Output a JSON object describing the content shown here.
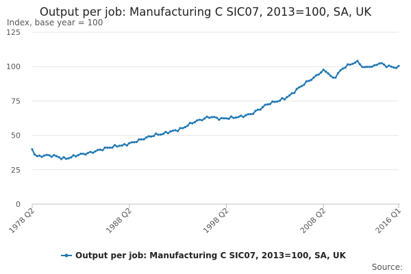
{
  "chart_data": {
    "type": "line",
    "title": "Output per job: Manufacturing C SIC07, 2013=100, SA, UK",
    "subtitle": "Index, base year = 100",
    "ylim": [
      0,
      125
    ],
    "yticks": [
      "0",
      "25",
      "50",
      "75",
      "100",
      "125"
    ],
    "xticks": [
      {
        "label": "1978 Q2",
        "t": 1978.25
      },
      {
        "label": "1988 Q2",
        "t": 1988.25
      },
      {
        "label": "1998 Q2",
        "t": 1998.25
      },
      {
        "label": "2008 Q2",
        "t": 2008.25
      },
      {
        "label": "2016 Q1",
        "t": 2016.0
      }
    ],
    "xrange": [
      1978.25,
      2016.0
    ],
    "series": [
      {
        "name": "Output per job: Manufacturing C SIC07, 2013=100, SA, UK",
        "color": "#1f77b4",
        "anchors": [
          [
            1978.25,
            39.5
          ],
          [
            1978.6,
            35.5
          ],
          [
            1979.0,
            34.5
          ],
          [
            1979.3,
            34.8
          ],
          [
            1979.6,
            36.0
          ],
          [
            1980.0,
            35.0
          ],
          [
            1980.4,
            35.5
          ],
          [
            1980.8,
            34.5
          ],
          [
            1981.3,
            33.5
          ],
          [
            1981.7,
            33.0
          ],
          [
            1982.2,
            34.0
          ],
          [
            1982.8,
            35.5
          ],
          [
            1983.5,
            36.5
          ],
          [
            1984.0,
            37.0
          ],
          [
            1984.8,
            38.5
          ],
          [
            1985.5,
            40.0
          ],
          [
            1986.0,
            41.0
          ],
          [
            1986.5,
            41.5
          ],
          [
            1987.0,
            42.5
          ],
          [
            1987.5,
            42.5
          ],
          [
            1988.0,
            43.5
          ],
          [
            1988.7,
            45.0
          ],
          [
            1989.5,
            47.0
          ],
          [
            1990.3,
            49.0
          ],
          [
            1991.0,
            50.5
          ],
          [
            1991.7,
            51.0
          ],
          [
            1992.3,
            52.5
          ],
          [
            1993.0,
            53.5
          ],
          [
            1993.7,
            55.0
          ],
          [
            1994.3,
            57.5
          ],
          [
            1995.0,
            60.0
          ],
          [
            1995.7,
            61.5
          ],
          [
            1996.3,
            63.0
          ],
          [
            1996.8,
            63.5
          ],
          [
            1997.2,
            62.5
          ],
          [
            1997.8,
            62.0
          ],
          [
            1998.3,
            62.5
          ],
          [
            1999.0,
            63.0
          ],
          [
            1999.7,
            63.5
          ],
          [
            2000.2,
            64.5
          ],
          [
            2000.8,
            65.5
          ],
          [
            2001.3,
            67.5
          ],
          [
            2001.8,
            69.5
          ],
          [
            2002.3,
            72.0
          ],
          [
            2002.8,
            73.5
          ],
          [
            2003.3,
            74.5
          ],
          [
            2003.8,
            75.5
          ],
          [
            2004.3,
            77.0
          ],
          [
            2004.8,
            79.0
          ],
          [
            2005.3,
            82.0
          ],
          [
            2005.8,
            85.0
          ],
          [
            2006.3,
            87.5
          ],
          [
            2006.8,
            90.0
          ],
          [
            2007.3,
            92.0
          ],
          [
            2007.8,
            95.0
          ],
          [
            2008.25,
            97.0
          ],
          [
            2008.6,
            96.5
          ],
          [
            2008.9,
            94.0
          ],
          [
            2009.2,
            91.0
          ],
          [
            2009.6,
            93.5
          ],
          [
            2010.0,
            97.0
          ],
          [
            2010.5,
            100.0
          ],
          [
            2011.0,
            101.5
          ],
          [
            2011.5,
            103.0
          ],
          [
            2011.9,
            103.5
          ],
          [
            2012.2,
            100.0
          ],
          [
            2012.6,
            99.0
          ],
          [
            2013.0,
            100.5
          ],
          [
            2013.3,
            99.5
          ],
          [
            2013.6,
            101.0
          ],
          [
            2013.9,
            102.5
          ],
          [
            2014.3,
            102.0
          ],
          [
            2014.7,
            100.5
          ],
          [
            2015.1,
            100.0
          ],
          [
            2015.5,
            99.5
          ],
          [
            2016.0,
            99.5
          ]
        ]
      }
    ],
    "legend": "Output per job: Manufacturing C SIC07, 2013=100, SA, UK",
    "source_label": "Source:"
  }
}
